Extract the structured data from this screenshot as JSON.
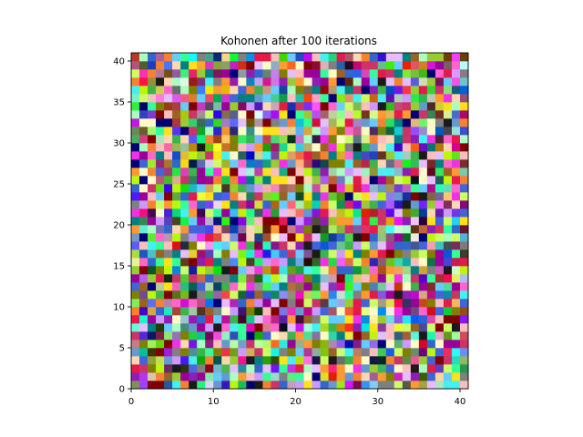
{
  "chart_data": {
    "type": "heatmap",
    "title": "Kohonen after 100 iterations",
    "xlabel": "",
    "ylabel": "",
    "grid_size": [
      41,
      41
    ],
    "xlim": [
      0,
      41
    ],
    "ylim": [
      0,
      41
    ],
    "x_ticks": [
      0,
      10,
      20,
      30,
      40
    ],
    "y_ticks": [
      0,
      5,
      10,
      15,
      20,
      25,
      30,
      35,
      40
    ],
    "x_tick_labels": [
      "0",
      "10",
      "20",
      "30",
      "40"
    ],
    "y_tick_labels": [
      "0",
      "5",
      "10",
      "15",
      "20",
      "25",
      "30",
      "35",
      "40"
    ],
    "grid": false,
    "palette": [
      "#e6194b",
      "#3cb44b",
      "#ffe119",
      "#4363d8",
      "#f58231",
      "#911eb4",
      "#46f0f0",
      "#f032e6",
      "#bcf60c",
      "#fabebe",
      "#008080",
      "#e6beff",
      "#9a6324",
      "#fffac8",
      "#800000",
      "#aaffc3",
      "#808000",
      "#ffd8b1",
      "#000075",
      "#808080",
      "#1a1a1a",
      "#ff66cc",
      "#66ccff",
      "#33ff99",
      "#cc3366",
      "#6699cc",
      "#99cc33",
      "#cc99ff",
      "#ff9933",
      "#3366cc",
      "#ccff66",
      "#990099"
    ]
  }
}
